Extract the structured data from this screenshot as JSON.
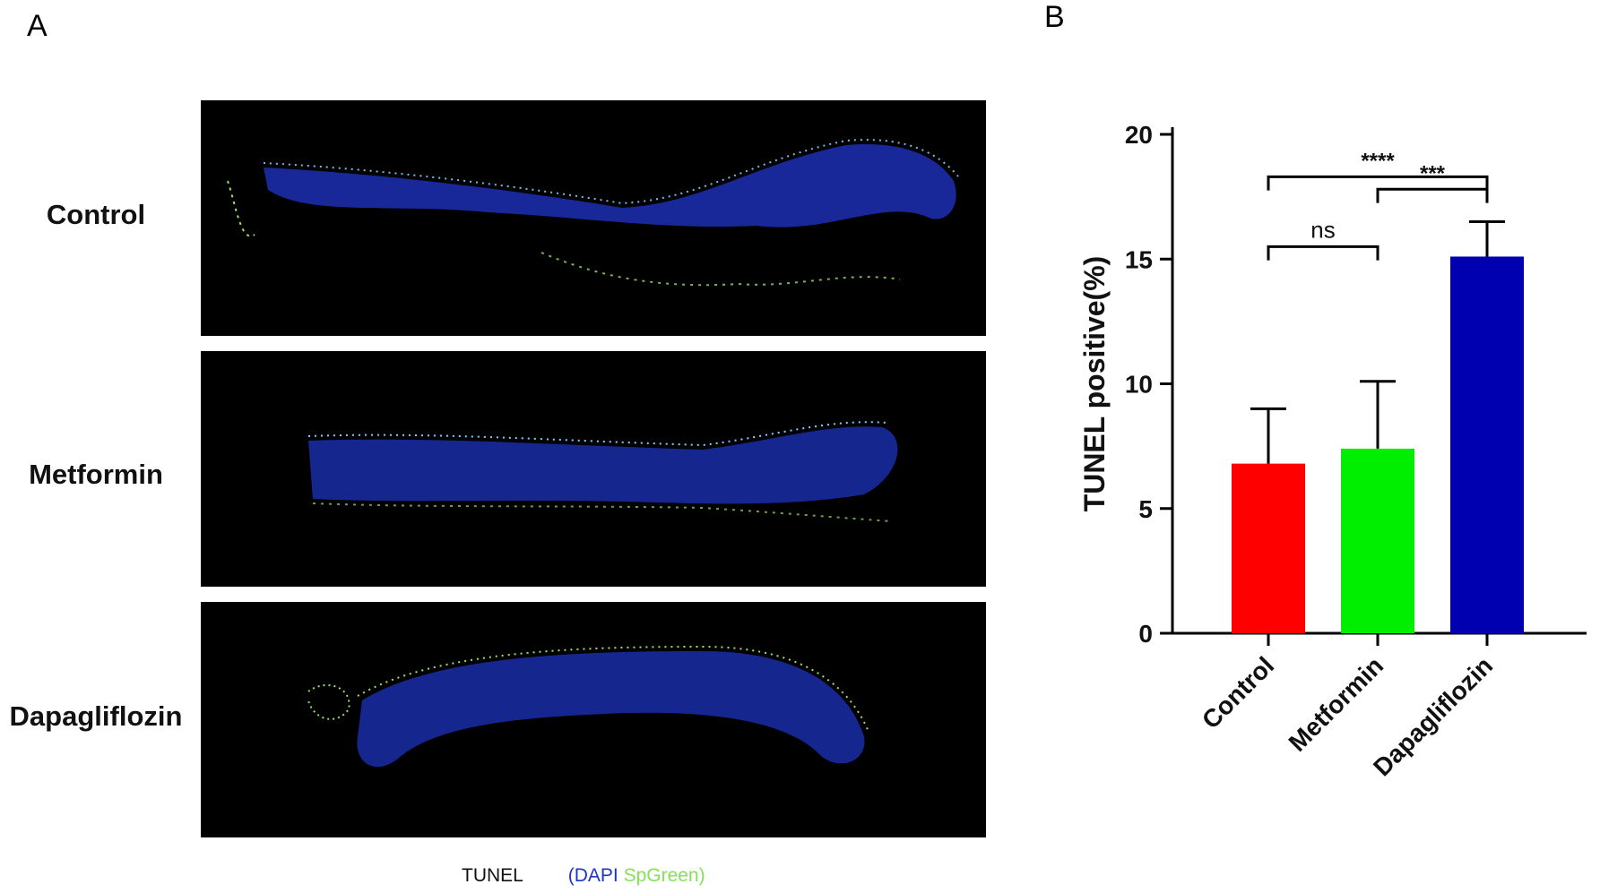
{
  "panels": {
    "a_label": "A",
    "b_label": "B"
  },
  "micrographs": {
    "rows": [
      {
        "label": "Control"
      },
      {
        "label": "Metformin"
      },
      {
        "label": "Dapagliflozin"
      }
    ],
    "legend": {
      "tunel": "TUNEL",
      "dapi": "(DAPI",
      "green": "SpGreen)"
    },
    "colors": {
      "dapi": "#1f35c9",
      "green": "#86e05a",
      "background": "#000000"
    }
  },
  "chart_data": {
    "type": "bar",
    "categories": [
      "Control",
      "Metformin",
      "Dapagliflozin"
    ],
    "values": [
      6.8,
      7.4,
      15.1
    ],
    "errors": [
      2.2,
      2.7,
      1.4
    ],
    "colors": [
      "#ff0000",
      "#00ee00",
      "#0000b0"
    ],
    "ylabel": "TUNEL positive(%)",
    "xlabel": "",
    "title": "",
    "ylim": [
      0,
      20
    ],
    "yticks": [
      0,
      5,
      10,
      15,
      20
    ],
    "significance": [
      {
        "from": 0,
        "to": 2,
        "label": "****"
      },
      {
        "from": 1,
        "to": 2,
        "label": "***"
      },
      {
        "from": 0,
        "to": 1,
        "label": "ns"
      }
    ],
    "grid": false,
    "legend": "none"
  }
}
